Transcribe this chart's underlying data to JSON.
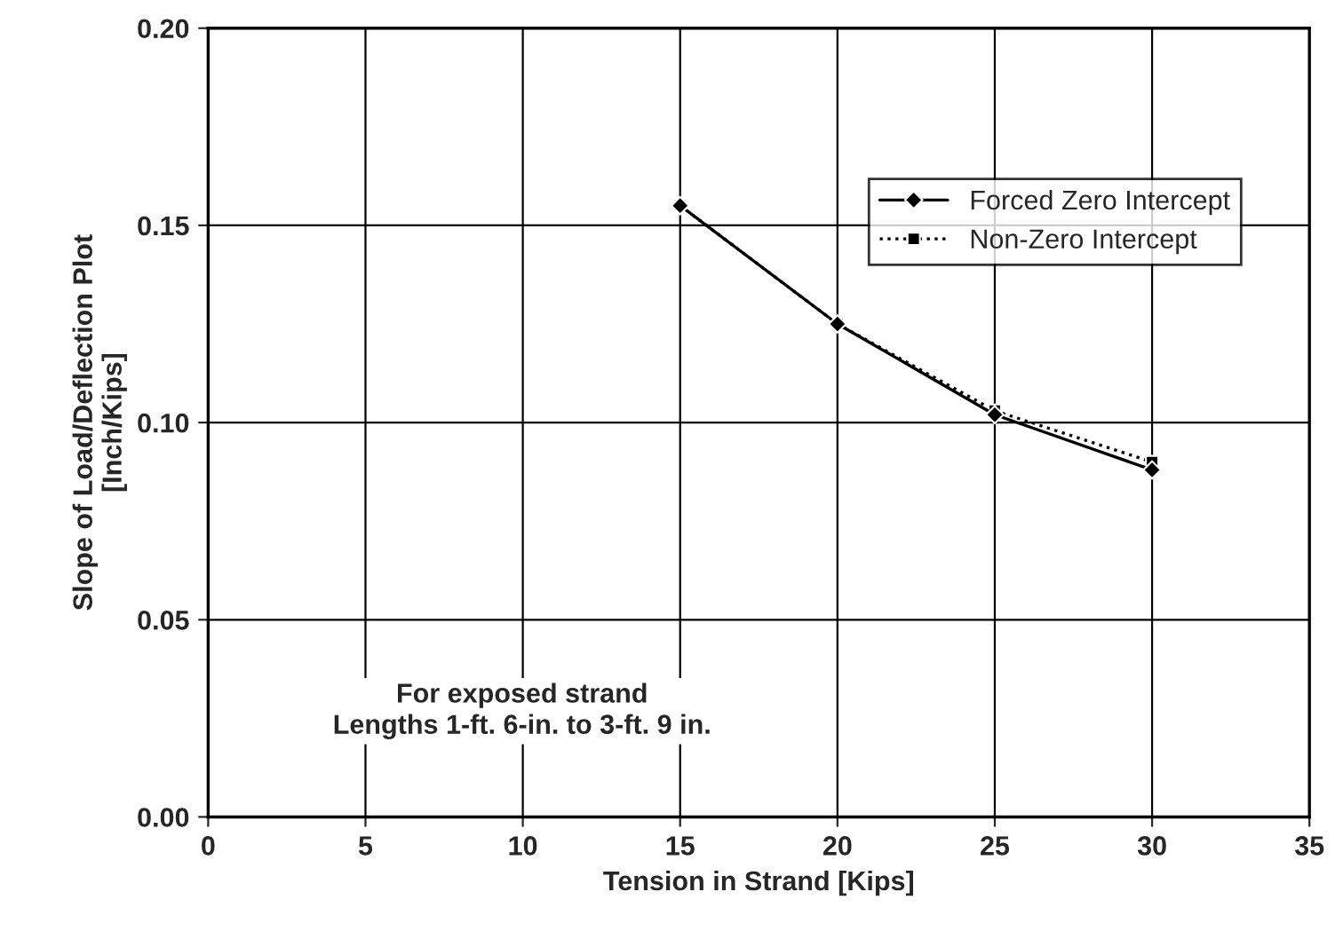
{
  "chart_data": {
    "type": "line",
    "xlabel": "Tension in Strand [Kips]",
    "ylabel": "Slope of Load/Deflection Plot\n[Inch/Kips]",
    "x": [
      15,
      20,
      25,
      30
    ],
    "series": [
      {
        "name": "Forced Zero Intercept",
        "color": "#000000",
        "marker": "diamond",
        "line_style": "solid",
        "values": [
          0.155,
          0.125,
          0.102,
          0.088
        ]
      },
      {
        "name": "Non-Zero Intercept",
        "color": "#000000",
        "marker": "square",
        "line_style": "dotted",
        "values": [
          0.155,
          0.125,
          0.103,
          0.09
        ]
      }
    ],
    "xlim": [
      0,
      35
    ],
    "xticks": [
      0,
      5,
      10,
      15,
      20,
      25,
      30,
      35
    ],
    "ylim": [
      0,
      0.2
    ],
    "yticks": [
      {
        "value": 0,
        "label": "0.00"
      },
      {
        "value": 0.05,
        "label": "0.05"
      },
      {
        "value": 0.1,
        "label": "0.10"
      },
      {
        "value": 0.15,
        "label": "0.15"
      },
      {
        "value": 0.2,
        "label": "0.20"
      }
    ],
    "annotations": [
      "For exposed strand\nLengths 1-ft. 6-in. to 3-ft. 9 in."
    ],
    "grid": true,
    "legend": "top right"
  }
}
